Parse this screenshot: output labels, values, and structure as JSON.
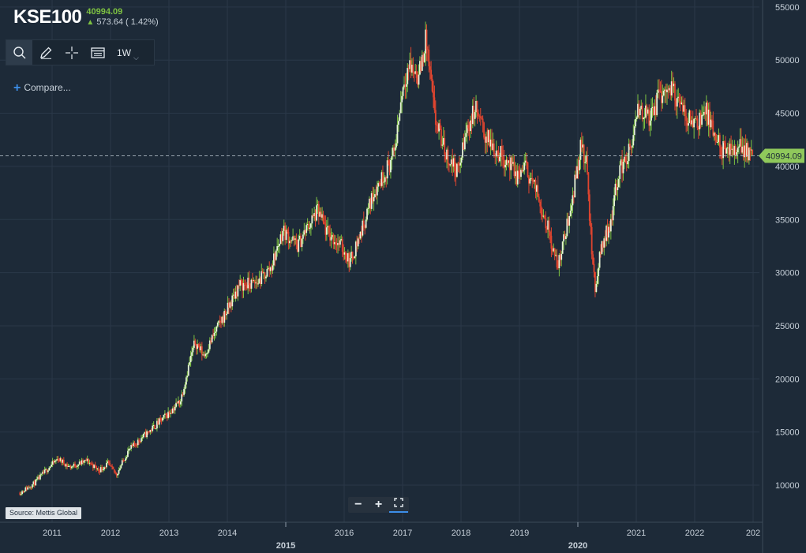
{
  "header": {
    "ticker": "KSE100",
    "last": "40994.09",
    "change": "573.64 ( 1.42%)"
  },
  "toolbar": {
    "interval": "1W",
    "icons": [
      "search-icon",
      "pencil-icon",
      "crosshair-icon",
      "table-icon",
      "chevron-down-icon"
    ]
  },
  "compare": {
    "label": "Compare..."
  },
  "source": "Source: Mettis Global",
  "zoom": {
    "icons": [
      "zoom-out-icon",
      "zoom-in-icon",
      "fit-icon"
    ]
  },
  "colors": {
    "background": "#1d2a38",
    "up": "#7ec242",
    "down": "#e0452f",
    "price_tag": "#8fc85b",
    "accent": "#3c8ee8"
  },
  "chart_data": {
    "type": "candlestick",
    "interval": "1W",
    "title": "",
    "xlabel": "",
    "ylabel": "",
    "ylim": [
      7000,
      55500
    ],
    "xlim": [
      2010.35,
      2023.05
    ],
    "grid": true,
    "y_ticks": [
      10000,
      15000,
      20000,
      25000,
      30000,
      35000,
      40000,
      45000,
      50000,
      55000
    ],
    "x_ticks": [
      {
        "label": "2011",
        "t": 2011.0,
        "major": false
      },
      {
        "label": "2012",
        "t": 2012.0,
        "major": false
      },
      {
        "label": "2013",
        "t": 2013.0,
        "major": false
      },
      {
        "label": "2014",
        "t": 2014.0,
        "major": false
      },
      {
        "label": "2015",
        "t": 2015.0,
        "major": true
      },
      {
        "label": "2016",
        "t": 2016.0,
        "major": false
      },
      {
        "label": "2017",
        "t": 2017.0,
        "major": false
      },
      {
        "label": "2018",
        "t": 2018.0,
        "major": false
      },
      {
        "label": "2019",
        "t": 2019.0,
        "major": false
      },
      {
        "label": "2020",
        "t": 2020.0,
        "major": true
      },
      {
        "label": "2021",
        "t": 2021.0,
        "major": false
      },
      {
        "label": "2022",
        "t": 2022.0,
        "major": false
      },
      {
        "label": "202",
        "t": 2023.0,
        "major": false
      }
    ],
    "last_price": 40994.09,
    "last_price_label": "40994.09",
    "trend": [
      [
        2010.45,
        9300
      ],
      [
        2010.7,
        10200
      ],
      [
        2010.95,
        11700
      ],
      [
        2011.1,
        12500
      ],
      [
        2011.3,
        11700
      ],
      [
        2011.6,
        12300
      ],
      [
        2011.8,
        11400
      ],
      [
        2011.95,
        12000
      ],
      [
        2012.1,
        11000
      ],
      [
        2012.3,
        13200
      ],
      [
        2012.5,
        14300
      ],
      [
        2012.75,
        15500
      ],
      [
        2013.0,
        16800
      ],
      [
        2013.2,
        18000
      ],
      [
        2013.35,
        21500
      ],
      [
        2013.45,
        23500
      ],
      [
        2013.6,
        22200
      ],
      [
        2013.8,
        24500
      ],
      [
        2014.0,
        26500
      ],
      [
        2014.2,
        28800
      ],
      [
        2014.5,
        29000
      ],
      [
        2014.75,
        30500
      ],
      [
        2014.95,
        34000
      ],
      [
        2015.2,
        32500
      ],
      [
        2015.4,
        34500
      ],
      [
        2015.55,
        35800
      ],
      [
        2015.7,
        33800
      ],
      [
        2015.95,
        32500
      ],
      [
        2016.1,
        31000
      ],
      [
        2016.3,
        34000
      ],
      [
        2016.5,
        37500
      ],
      [
        2016.7,
        39500
      ],
      [
        2016.85,
        41000
      ],
      [
        2017.0,
        47500
      ],
      [
        2017.1,
        49500
      ],
      [
        2017.28,
        48500
      ],
      [
        2017.4,
        52000
      ],
      [
        2017.55,
        44500
      ],
      [
        2017.75,
        41000
      ],
      [
        2017.95,
        39500
      ],
      [
        2018.1,
        43500
      ],
      [
        2018.25,
        45500
      ],
      [
        2018.4,
        43000
      ],
      [
        2018.6,
        41500
      ],
      [
        2018.8,
        40500
      ],
      [
        2018.95,
        39000
      ],
      [
        2019.1,
        40000
      ],
      [
        2019.3,
        37500
      ],
      [
        2019.5,
        34000
      ],
      [
        2019.65,
        30500
      ],
      [
        2019.8,
        34000
      ],
      [
        2019.95,
        38500
      ],
      [
        2020.05,
        42000
      ],
      [
        2020.15,
        40000
      ],
      [
        2020.25,
        31000
      ],
      [
        2020.3,
        28500
      ],
      [
        2020.4,
        32500
      ],
      [
        2020.55,
        34500
      ],
      [
        2020.7,
        39500
      ],
      [
        2020.9,
        41500
      ],
      [
        2021.05,
        45500
      ],
      [
        2021.25,
        44500
      ],
      [
        2021.4,
        46800
      ],
      [
        2021.6,
        47500
      ],
      [
        2021.8,
        45000
      ],
      [
        2022.0,
        44200
      ],
      [
        2022.2,
        45000
      ],
      [
        2022.35,
        42500
      ],
      [
        2022.55,
        41000
      ],
      [
        2022.75,
        42000
      ],
      [
        2022.9,
        41500
      ],
      [
        2023.0,
        40994
      ]
    ]
  }
}
